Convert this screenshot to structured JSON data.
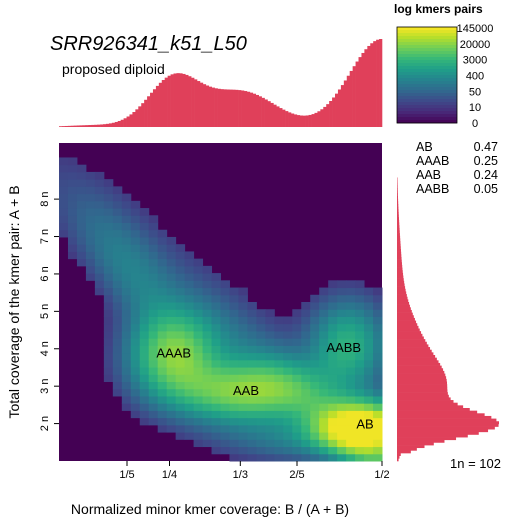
{
  "chart_data": {
    "type": "heatmap",
    "title": "SRR926341_k51_L50",
    "subtitle": "proposed diploid",
    "xlabel": "Normalized minor kmer coverage: B / (A + B)",
    "ylabel": "Total coverage of the kmer pair: A + B",
    "xlim": [
      0.12,
      0.5
    ],
    "ylim": [
      1.0,
      9.5
    ],
    "x_ticks": [
      {
        "value": 0.2,
        "label": "1/5"
      },
      {
        "value": 0.25,
        "label": "1/4"
      },
      {
        "value": 0.3333,
        "label": "1/3"
      },
      {
        "value": 0.4,
        "label": "2/5"
      },
      {
        "value": 0.5,
        "label": "1/2"
      }
    ],
    "y_ticks": [
      {
        "value": 2,
        "label": "2 n"
      },
      {
        "value": 3,
        "label": "3 n"
      },
      {
        "value": 4,
        "label": "4 n"
      },
      {
        "value": 5,
        "label": "5 n"
      },
      {
        "value": 6,
        "label": "6 n"
      },
      {
        "value": 7,
        "label": "7 n"
      },
      {
        "value": 8,
        "label": "8 n"
      }
    ],
    "peak_labels": [
      {
        "label": "AAAB",
        "x": 0.255,
        "y": 3.9
      },
      {
        "label": "AAB",
        "x": 0.34,
        "y": 2.9
      },
      {
        "label": "AABB",
        "x": 0.455,
        "y": 4.05
      },
      {
        "label": "AB",
        "x": 0.48,
        "y": 2.0
      }
    ],
    "legend": {
      "title": "log kmers pairs",
      "labels": [
        "145000",
        "20000",
        "3000",
        "400",
        "50",
        "10",
        "0"
      ]
    },
    "genotype_proportions": [
      {
        "genotype": "AB",
        "value": "0.47"
      },
      {
        "genotype": "AAAB",
        "value": "0.25"
      },
      {
        "genotype": "AAB",
        "value": "0.24"
      },
      {
        "genotype": "AABB",
        "value": "0.05"
      }
    ],
    "n_label": "1n =  102",
    "colors": {
      "background": "#440154",
      "histogram": "#e0405a",
      "viridis": [
        "#440154",
        "#482878",
        "#3e4989",
        "#31688e",
        "#26828e",
        "#1f9e89",
        "#35b779",
        "#6ece58",
        "#b5de2b",
        "#fde725"
      ]
    }
  }
}
